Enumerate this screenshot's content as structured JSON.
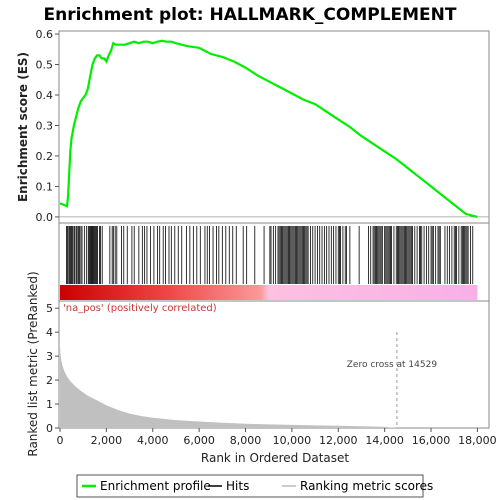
{
  "chart_data": {
    "type": "line",
    "title": "Enrichment plot: HALLMARK_COMPLEMENT",
    "xlabel": "Rank in Ordered Dataset",
    "ylabel_top": "Enrichment score (ES)",
    "ylabel_bottom": "Ranked list metric (PreRanked)",
    "xlim": [
      0,
      18500
    ],
    "x_ticks": [
      0,
      2000,
      4000,
      6000,
      8000,
      10000,
      12000,
      14000,
      16000,
      18000
    ],
    "x_tick_labels": [
      "0",
      "2,000",
      "4,000",
      "6,000",
      "8,000",
      "10,000",
      "12,000",
      "14,000",
      "16,000",
      "18,000"
    ],
    "es_ylim": [
      -0.02,
      0.61
    ],
    "es_ticks": [
      0.0,
      0.1,
      0.2,
      0.3,
      0.4,
      0.5,
      0.6
    ],
    "es_tick_labels": [
      "0.0",
      "0.1",
      "0.2",
      "0.3",
      "0.4",
      "0.5",
      "0.6"
    ],
    "metric_ylim": [
      0,
      5.3
    ],
    "metric_ticks": [
      0,
      1,
      2,
      3,
      4,
      5
    ],
    "metric_tick_labels": [
      "0",
      "1",
      "2",
      "3",
      "4",
      "5"
    ],
    "positive_label": "'na_pos' (positively correlated)",
    "zero_cross_label": "Zero cross at 14529",
    "zero_cross_x": 14529,
    "enrichment_profile": {
      "name": "Enrichment profile",
      "color": "#00ee00",
      "x": [
        0,
        150,
        300,
        350,
        400,
        450,
        500,
        550,
        600,
        700,
        800,
        900,
        1000,
        1100,
        1200,
        1300,
        1400,
        1500,
        1600,
        1700,
        1800,
        1900,
        2000,
        2100,
        2200,
        2300,
        2400,
        2600,
        2800,
        3000,
        3200,
        3400,
        3600,
        3800,
        4000,
        4200,
        4400,
        4600,
        4800,
        5000,
        5500,
        6000,
        6500,
        7000,
        7500,
        8000,
        8500,
        9000,
        9500,
        10000,
        10500,
        11000,
        11500,
        12000,
        12500,
        13000,
        13500,
        14000,
        14500,
        15000,
        15500,
        16000,
        16500,
        17000,
        17500,
        18000
      ],
      "y": [
        0.045,
        0.04,
        0.035,
        0.07,
        0.15,
        0.22,
        0.26,
        0.28,
        0.3,
        0.33,
        0.36,
        0.38,
        0.39,
        0.4,
        0.42,
        0.46,
        0.5,
        0.52,
        0.53,
        0.53,
        0.52,
        0.52,
        0.51,
        0.53,
        0.545,
        0.57,
        0.565,
        0.565,
        0.565,
        0.57,
        0.575,
        0.57,
        0.575,
        0.575,
        0.57,
        0.575,
        0.578,
        0.575,
        0.575,
        0.57,
        0.56,
        0.555,
        0.535,
        0.525,
        0.51,
        0.49,
        0.465,
        0.445,
        0.425,
        0.405,
        0.385,
        0.37,
        0.345,
        0.32,
        0.295,
        0.265,
        0.24,
        0.215,
        0.19,
        0.16,
        0.13,
        0.1,
        0.07,
        0.04,
        0.01,
        0.0
      ]
    },
    "hits": {
      "name": "Hits",
      "color": "#000000",
      "x": [
        280,
        320,
        380,
        420,
        460,
        500,
        540,
        600,
        640,
        700,
        740,
        800,
        840,
        900,
        950,
        1050,
        1150,
        1220,
        1260,
        1300,
        1340,
        1380,
        1420,
        1460,
        1500,
        1540,
        1580,
        1620,
        1700,
        1750,
        1820,
        2150,
        2250,
        2300,
        2380,
        2450,
        2650,
        2750,
        2900,
        3100,
        3200,
        3400,
        3550,
        3650,
        3750,
        3900,
        4050,
        4200,
        4300,
        4450,
        4550,
        4700,
        4800,
        4950,
        5100,
        5250,
        5450,
        5600,
        5750,
        5900,
        6050,
        6250,
        6350,
        6450,
        6600,
        6750,
        6850,
        7000,
        7150,
        7300,
        7450,
        7600,
        7900,
        8050,
        8400,
        8800,
        9050,
        9100,
        9200,
        9300,
        9400,
        9450,
        9500,
        9550,
        9600,
        9650,
        9700,
        9750,
        9800,
        9850,
        9900,
        9950,
        10000,
        10050,
        10100,
        10150,
        10200,
        10250,
        10300,
        10350,
        10400,
        10450,
        10500,
        10550,
        10600,
        10650,
        10700,
        10800,
        10900,
        11000,
        11100,
        11200,
        11300,
        11400,
        11500,
        11600,
        11700,
        11800,
        11900,
        12000,
        12050,
        12100,
        12200,
        12300,
        12350,
        12500,
        12900,
        13300,
        13400,
        13500,
        13550,
        13600,
        13650,
        13700,
        13750,
        13800,
        13850,
        13900,
        14000,
        14050,
        14100,
        14150,
        14200,
        14250,
        14300,
        14400,
        14500,
        14550,
        14600,
        14650,
        14700,
        14750,
        14800,
        14850,
        14900,
        14950,
        15000,
        15050,
        15100,
        15150,
        15200,
        15300,
        15400,
        15500,
        15550,
        15600,
        15700,
        15800,
        15900,
        16000,
        16050,
        16100,
        16200,
        16300,
        16350,
        16400,
        16600,
        16700,
        16800,
        16900,
        17000,
        17050,
        17100,
        17200,
        17300,
        17350,
        17400,
        17450,
        17500,
        17550,
        17600,
        17700,
        17800
      ]
    },
    "ranking_metric": {
      "name": "Ranking metric scores",
      "color": "#bbbbbb",
      "x": [
        0,
        20,
        60,
        120,
        200,
        300,
        450,
        650,
        900,
        1200,
        1600,
        2000,
        2500,
        3000,
        3500,
        4000,
        5000,
        6000,
        7000,
        8000,
        9000,
        10000,
        11000,
        12000,
        13000,
        14000,
        14529,
        15000,
        16000,
        17000,
        18000
      ],
      "y": [
        3.4,
        3.1,
        2.8,
        2.55,
        2.35,
        2.15,
        1.95,
        1.75,
        1.55,
        1.35,
        1.15,
        0.95,
        0.75,
        0.6,
        0.5,
        0.43,
        0.33,
        0.27,
        0.22,
        0.18,
        0.15,
        0.13,
        0.11,
        0.09,
        0.07,
        0.05,
        0.0,
        0.0,
        0.0,
        0.0,
        0.0
      ]
    },
    "legend": [
      "Enrichment profile",
      "Hits",
      "Ranking metric scores"
    ],
    "legend_position": "bottom"
  }
}
